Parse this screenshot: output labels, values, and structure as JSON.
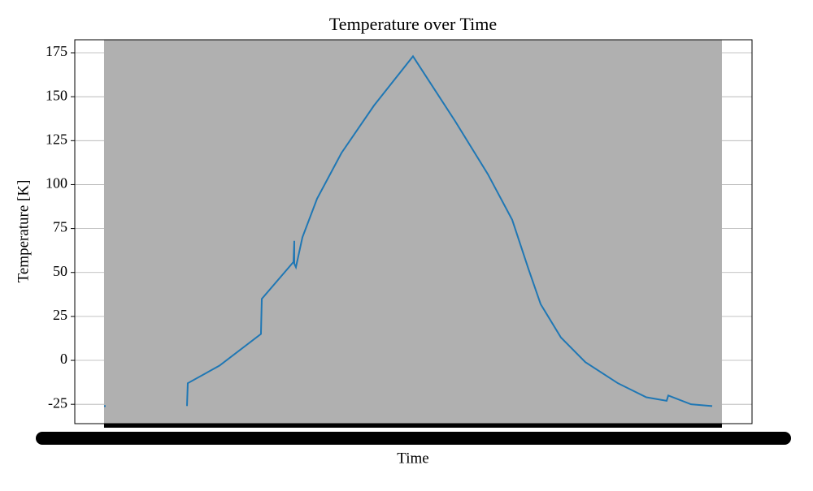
{
  "chart_data": {
    "type": "line",
    "title": "Temperature over Time",
    "xlabel": "Time",
    "ylabel": "Temperature [K]",
    "x": [
      0,
      0.27,
      5,
      13.64,
      13.77,
      18.98,
      25.8,
      25.94,
      31.15,
      31.28,
      31.28,
      31.55,
      32.62,
      35.03,
      39.04,
      44.39,
      50.8,
      57.75,
      63.1,
      67.11,
      69.79,
      71.79,
      75.13,
      79.14,
      84.49,
      89.17,
      92.51,
      92.78,
      96.52,
      100
    ],
    "series": [
      {
        "color": "#1f77b4",
        "values": [
          -26,
          -26,
          null,
          -26,
          -13,
          -3,
          15,
          35,
          56,
          68,
          55,
          53,
          70,
          92,
          118,
          145,
          173,
          136,
          106,
          80,
          52,
          32,
          13,
          -1,
          -13,
          -21,
          -23,
          -20,
          -25,
          -26
        ]
      }
    ],
    "xlim": [
      -4.81,
      106.55
    ],
    "ylim": [
      -36,
      182.4
    ],
    "yticks": [
      -25,
      0,
      25,
      50,
      75,
      100,
      125,
      150,
      175
    ],
    "grid": true,
    "span": [
      0,
      101.6
    ],
    "span_color": "#b0b0b0"
  }
}
